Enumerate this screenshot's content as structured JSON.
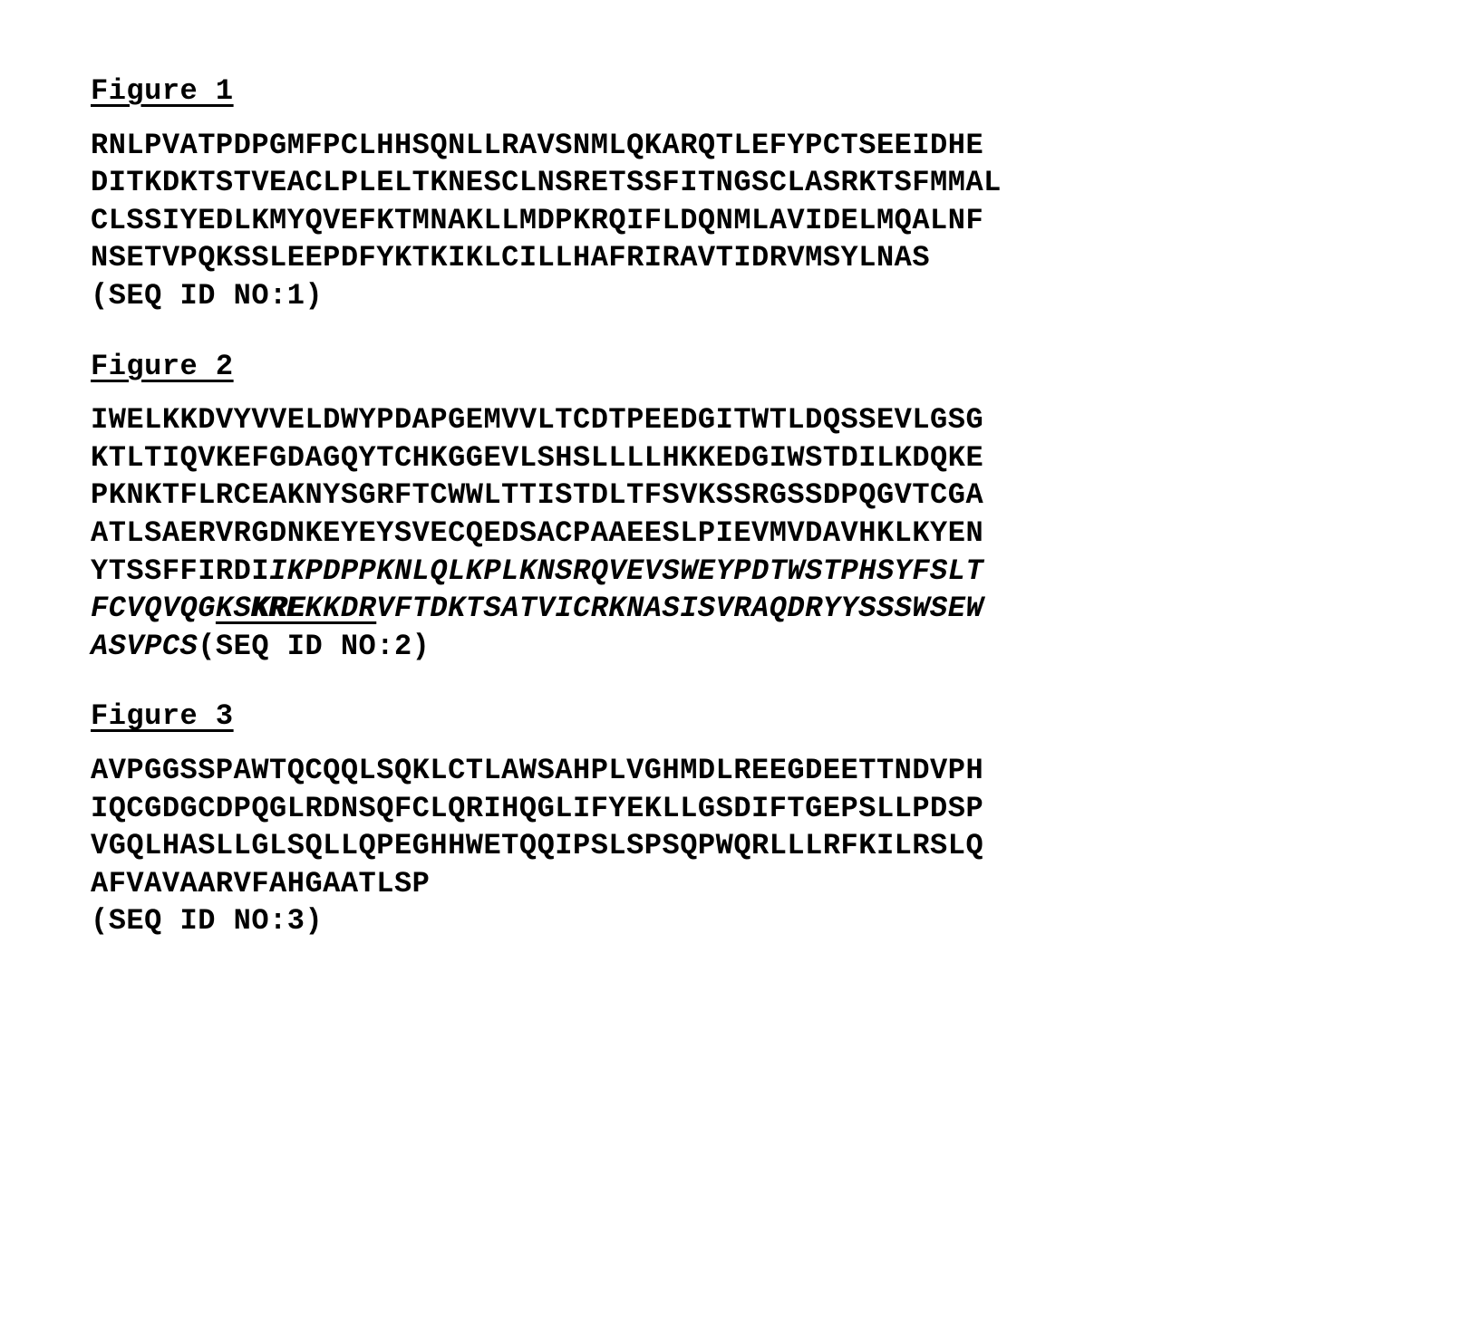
{
  "figures": [
    {
      "heading": "Figure 1",
      "seq_id_label": "(SEQ ID NO:1)",
      "lines": [
        "RNLPVATPDPGMFPCLHHSQNLLRAVSNMLQKARQTLEFYPCTSEEIDHE",
        "DITKDKTSTVEACLPLELTKNESCLNSRETSSFITNGSCLASRKTSFMMAL",
        "CLSSIYEDLKMYQVEFKTMNAKLLMDPKRQIFLDQNMLAVIDELMQALNF",
        "NSETVPQKSSLEEPDFYKTKIKLCILLHAFRIRAVTIDRVMSYLNAS"
      ]
    },
    {
      "heading": "Figure 2",
      "seq_id_label": "(SEQ ID NO:2)",
      "lines_plain": [
        "IWELKKDVYVVELDWYPDAPGEMVVLTCDTPEEDGITWTLDQSSEVLGSG",
        "KTLTIQVKEFGDAGQYTCHKGGEVLSHSLLLLHKKEDGIWSTDILKDQKE",
        "PKNKTFLRCEAKNYSGRFTCWWLTTISTDLTFSVKSSRGSSDPQGVTCGA",
        "ATLSAERVRGDNKEYEYSVECQEDSACPAAEESLPIEVMVDAVHKLKYEN"
      ],
      "line5_plain_prefix": "YTSSFFIRDI",
      "line5_italic": "IKPDPPKNLQLKPLKNSRQVEVSWEYPDTWSTPHSYFSLT",
      "line6_italic_a": "FCVQVQG",
      "line6_italic_ul_b": "KS",
      "line6_kre": "KRE",
      "line6_italic_ul_c": "KKDR",
      "line6_italic_d": "VFTDKTSATVICRKNASISVRAQDRYYSSSWSEW",
      "line7_italic": "ASVPCS"
    },
    {
      "heading": "Figure 3",
      "seq_id_label": "(SEQ ID NO:3)",
      "lines": [
        "AVPGGSSPAWTQCQQLSQKLCTLAWSAHPLVGHMDLREEGDEETTNDVPH",
        "IQCGDGCDPQGLRDNSQFCLQRIHQGLIFYEKLLGSDIFTGEPSLLPDSP",
        "VGQLHASLLGLSQLLQPEGHHWETQQIPSLSPSQPWQRLLLRFKILRSLQ",
        "AFVAVAARVFAHGAATLSP"
      ]
    }
  ]
}
